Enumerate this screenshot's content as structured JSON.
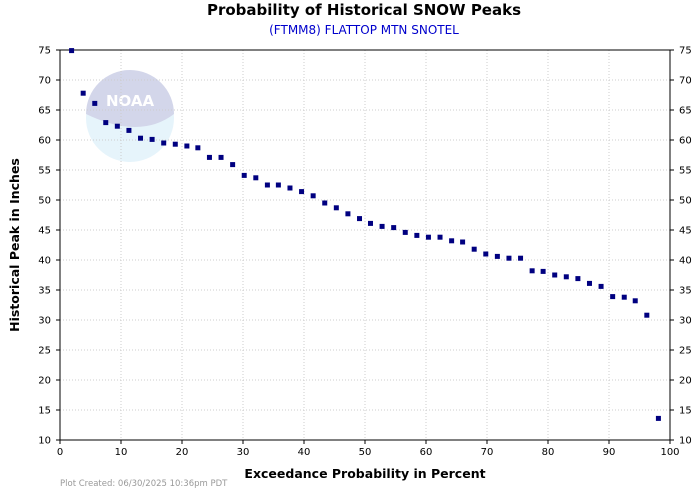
{
  "chart_data": {
    "type": "scatter",
    "title": "Probability of Historical SNOW Peaks",
    "subtitle": "(FTMM8) FLATTOP MTN SNOTEL",
    "xlabel": "Exceedance Probability in Percent",
    "ylabel": "Historical Peak in Inches",
    "xlim": [
      0,
      100
    ],
    "ylim": [
      10,
      75
    ],
    "xticks": [
      0,
      10,
      20,
      30,
      40,
      50,
      60,
      70,
      80,
      90,
      100
    ],
    "yticks": [
      10,
      15,
      20,
      25,
      30,
      35,
      40,
      45,
      50,
      55,
      60,
      65,
      70,
      75
    ],
    "grid": true,
    "marker_color": "#000080",
    "points": [
      [
        1.9,
        74.9
      ],
      [
        3.8,
        67.8
      ],
      [
        5.7,
        66.1
      ],
      [
        7.5,
        62.9
      ],
      [
        9.4,
        62.3
      ],
      [
        11.3,
        61.6
      ],
      [
        13.2,
        60.3
      ],
      [
        15.1,
        60.1
      ],
      [
        17.0,
        59.5
      ],
      [
        18.9,
        59.3
      ],
      [
        20.8,
        59.0
      ],
      [
        22.6,
        58.7
      ],
      [
        24.5,
        57.1
      ],
      [
        26.4,
        57.1
      ],
      [
        28.3,
        55.9
      ],
      [
        30.2,
        54.1
      ],
      [
        32.1,
        53.7
      ],
      [
        34.0,
        52.5
      ],
      [
        35.8,
        52.5
      ],
      [
        37.7,
        52.0
      ],
      [
        39.6,
        51.4
      ],
      [
        41.5,
        50.7
      ],
      [
        43.4,
        49.5
      ],
      [
        45.3,
        48.7
      ],
      [
        47.2,
        47.7
      ],
      [
        49.1,
        46.9
      ],
      [
        50.9,
        46.1
      ],
      [
        52.8,
        45.6
      ],
      [
        54.7,
        45.4
      ],
      [
        56.6,
        44.6
      ],
      [
        58.5,
        44.1
      ],
      [
        60.4,
        43.8
      ],
      [
        62.3,
        43.8
      ],
      [
        64.2,
        43.2
      ],
      [
        66.0,
        43.0
      ],
      [
        67.9,
        41.8
      ],
      [
        69.8,
        41.0
      ],
      [
        71.7,
        40.6
      ],
      [
        73.6,
        40.3
      ],
      [
        75.5,
        40.3
      ],
      [
        77.4,
        38.2
      ],
      [
        79.2,
        38.1
      ],
      [
        81.1,
        37.5
      ],
      [
        83.0,
        37.2
      ],
      [
        84.9,
        36.9
      ],
      [
        86.8,
        36.1
      ],
      [
        88.7,
        35.6
      ],
      [
        90.6,
        33.9
      ],
      [
        92.5,
        33.8
      ],
      [
        94.3,
        33.2
      ],
      [
        96.2,
        30.8
      ],
      [
        98.1,
        13.6
      ]
    ]
  },
  "logo": {
    "text": "NOAA"
  },
  "footer": {
    "text": "Plot Created: 06/30/2025 10:36pm PDT"
  }
}
